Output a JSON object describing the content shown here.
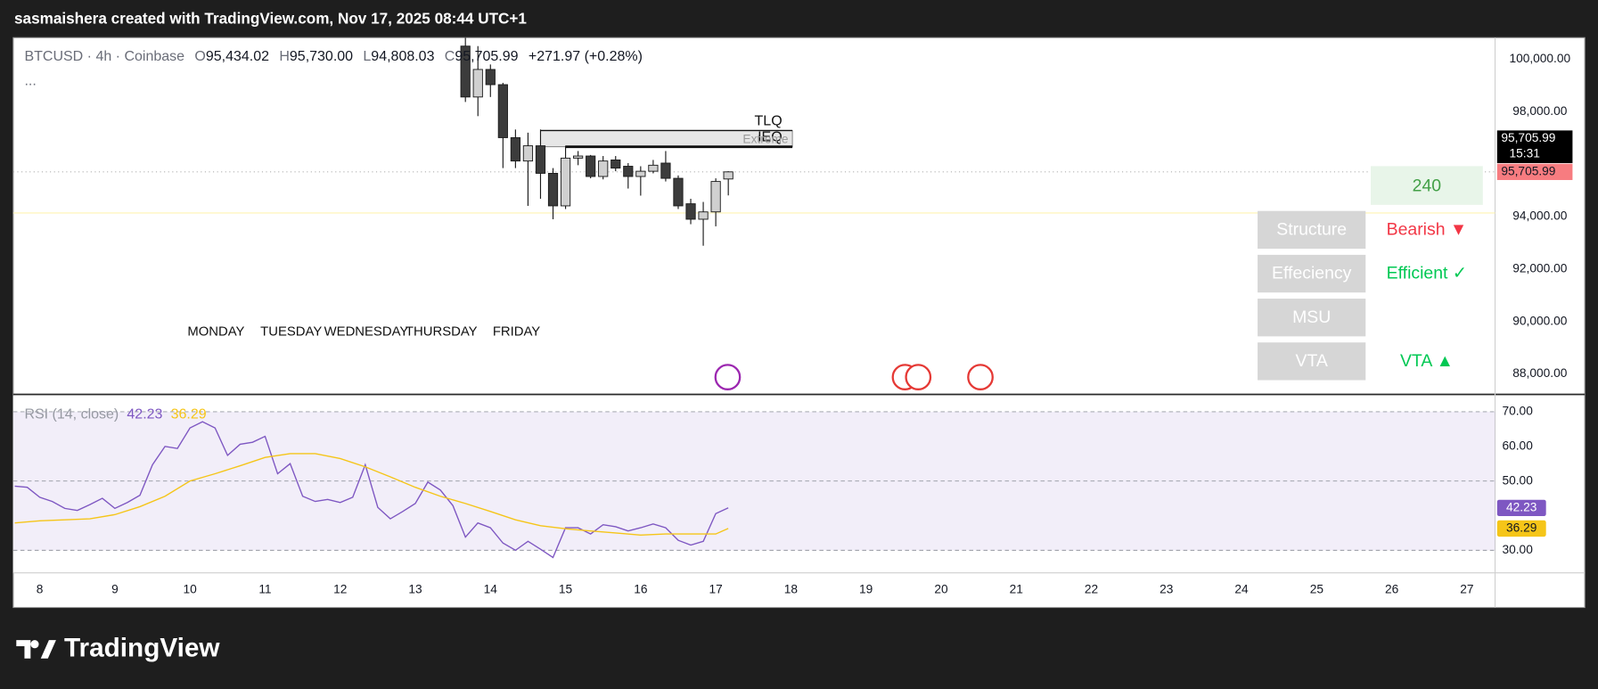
{
  "header": "sasmaishera created with TradingView.com, Nov 17, 2025 08:44 UTC+1",
  "brand": "TradingView",
  "legend": {
    "symbol": "BTCUSD · 4h · Coinbase",
    "items": [
      {
        "key": "O",
        "value": "95,434.02"
      },
      {
        "key": "H",
        "value": "95,730.00"
      },
      {
        "key": "L",
        "value": "94,808.03"
      },
      {
        "key": "C",
        "value": "95,705.99"
      }
    ],
    "change": "+271.97 (+0.28%)",
    "more": "..."
  },
  "price_label": {
    "label": "95,705.99",
    "countdown": "15:31"
  },
  "indicator_panel": {
    "timeframe": "240",
    "rows": [
      {
        "label": "Structure",
        "value": "Bearish ▼",
        "color": "#f23645"
      },
      {
        "label": "Effeciency",
        "value": "Efficient ✓",
        "color": "#00c853"
      },
      {
        "label": "MSU"
      },
      {
        "label": "VTA",
        "value": "VTA ▲",
        "color": "#00c853"
      }
    ]
  },
  "chart_data": [
    {
      "type": "candlestick",
      "x": [
        13.6667,
        13.8333,
        14,
        14.1667,
        14.3333,
        14.5,
        14.6667,
        14.8333,
        15,
        15.1667,
        15.3333,
        15.5,
        15.6667,
        15.8333,
        16,
        16.1667,
        16.3333,
        16.5,
        16.6667,
        16.8333,
        17,
        17.1667
      ],
      "open": [
        100500,
        98560,
        99610,
        99030,
        97010,
        96120,
        96700,
        95650,
        94410,
        96230,
        96310,
        95530,
        96160,
        95920,
        95530,
        95730,
        96040,
        95460,
        94490,
        93900,
        94180,
        95434.02
      ],
      "high": [
        100820,
        100500,
        99800,
        99100,
        97320,
        97200,
        97320,
        95850,
        96700,
        96500,
        96350,
        96310,
        96310,
        96040,
        95920,
        96160,
        96500,
        95570,
        94680,
        94560,
        95460,
        95730
      ],
      "low": [
        98370,
        97830,
        98560,
        95850,
        95850,
        94410,
        94680,
        93900,
        94290,
        95960,
        95460,
        95420,
        95730,
        95070,
        94800,
        95650,
        95340,
        94290,
        93710,
        92890,
        93630,
        94808.03
      ],
      "close": [
        98560,
        99610,
        99030,
        97010,
        96120,
        96700,
        95650,
        94410,
        96230,
        96310,
        95530,
        96120,
        95850,
        95530,
        95730,
        95960,
        95460,
        94410,
        93900,
        94180,
        95340,
        95705.99
      ],
      "up_color": "#d0d0d0",
      "down_color": "#3c3c3c",
      "border_color": "#1a1a1a",
      "xlim": [
        7.647,
        27.375
      ],
      "ylim": [
        87260,
        100820
      ],
      "yticks": [
        {
          "value": 100000,
          "label": "100,000.00"
        },
        {
          "value": 98000,
          "label": "98,000.00"
        },
        {
          "value": 94000,
          "label": "94,000.00"
        },
        {
          "value": 92000,
          "label": "92,000.00"
        },
        {
          "value": 90000,
          "label": "90,000.00"
        },
        {
          "value": 88000,
          "label": "88,000.00"
        }
      ],
      "levels": [
        {
          "label": "TLQ",
          "value": 97280,
          "x": [
            14.6667,
            18.02
          ]
        },
        {
          "label": "IEQ",
          "value": 96660,
          "x": [
            15,
            18.02
          ]
        }
      ],
      "zone_label": "Extreme",
      "session_labels": [
        "MONDAY",
        "TUESDAY",
        "WEDNESDAY",
        "THURSDAY",
        "FRIDAY"
      ]
    },
    {
      "type": "line",
      "title": "RSI (14, close)",
      "series": [
        {
          "color": "#7e57c2",
          "last_label": "42.23",
          "x": [
            7.6667,
            7.8333,
            8,
            8.1667,
            8.3333,
            8.5,
            8.6667,
            8.8333,
            9,
            9.1667,
            9.3333,
            9.5,
            9.6667,
            9.8333,
            10,
            10.1667,
            10.3333,
            10.5,
            10.6667,
            10.8333,
            11,
            11.1667,
            11.3333,
            11.5,
            11.6667,
            11.8333,
            12,
            12.1667,
            12.3333,
            12.5,
            12.6667,
            12.8333,
            13,
            13.1667,
            13.3333,
            13.5,
            13.6667,
            13.8333,
            14,
            14.1667,
            14.3333,
            14.5,
            14.6667,
            14.8333,
            15,
            15.1667,
            15.3333,
            15.5,
            15.6667,
            15.8333,
            16,
            16.1667,
            16.3333,
            16.5,
            16.6667,
            16.8333,
            17,
            17.1667
          ],
          "values": [
            48.5,
            48.2,
            45.3,
            44.1,
            42.1,
            41.5,
            43.2,
            45,
            42.1,
            43.8,
            45.9,
            54.7,
            60,
            59.4,
            65.3,
            67.1,
            65.3,
            57.4,
            60.6,
            61.2,
            62.9,
            52.1,
            55,
            45.6,
            44.1,
            44.7,
            43.8,
            45.3,
            54.7,
            42.4,
            39.1,
            41.2,
            43.5,
            49.7,
            47.4,
            42.9,
            33.8,
            37.9,
            36.5,
            32.1,
            30,
            32.6,
            30.3,
            27.9,
            36.5,
            36.5,
            34.7,
            37.4,
            36.8,
            35.6,
            36.5,
            37.6,
            36.5,
            32.9,
            31.5,
            32.6,
            40.6,
            42.23
          ]
        },
        {
          "color": "#f5c518",
          "last_label": "36.29",
          "x": [
            7.6667,
            8,
            8.3333,
            8.6667,
            9,
            9.3333,
            9.6667,
            10,
            10.3333,
            10.6667,
            11,
            11.3333,
            11.6667,
            12,
            12.3333,
            12.6667,
            13,
            13.3333,
            13.6667,
            14,
            14.3333,
            14.6667,
            15,
            15.3333,
            15.6667,
            16,
            16.3333,
            16.6667,
            17,
            17.1667
          ],
          "values": [
            37.9,
            38.5,
            38.8,
            39.1,
            40.3,
            42.6,
            45.6,
            50,
            52.1,
            54.4,
            56.8,
            57.9,
            57.9,
            56.5,
            54.1,
            51.2,
            48.2,
            45.6,
            43.5,
            41.2,
            38.8,
            37.1,
            36.2,
            35.6,
            35,
            34.4,
            34.7,
            34.7,
            34.7,
            36.29
          ]
        }
      ],
      "band": [
        30,
        70
      ],
      "band_color": "#7e57c2",
      "hlines": [
        70,
        50,
        30
      ],
      "xlim": [
        7.647,
        27.375
      ],
      "ylim": [
        23.5,
        74.7
      ],
      "yticks": [
        {
          "value": 70,
          "label": "70.00"
        },
        {
          "value": 60,
          "label": "60.00"
        },
        {
          "value": 50,
          "label": "50.00"
        },
        {
          "value": 30,
          "label": "30.00"
        }
      ],
      "xticks": [
        8,
        9,
        10,
        11,
        12,
        13,
        14,
        15,
        16,
        17,
        18,
        19,
        20,
        21,
        22,
        23,
        24,
        25,
        26,
        27
      ]
    }
  ]
}
